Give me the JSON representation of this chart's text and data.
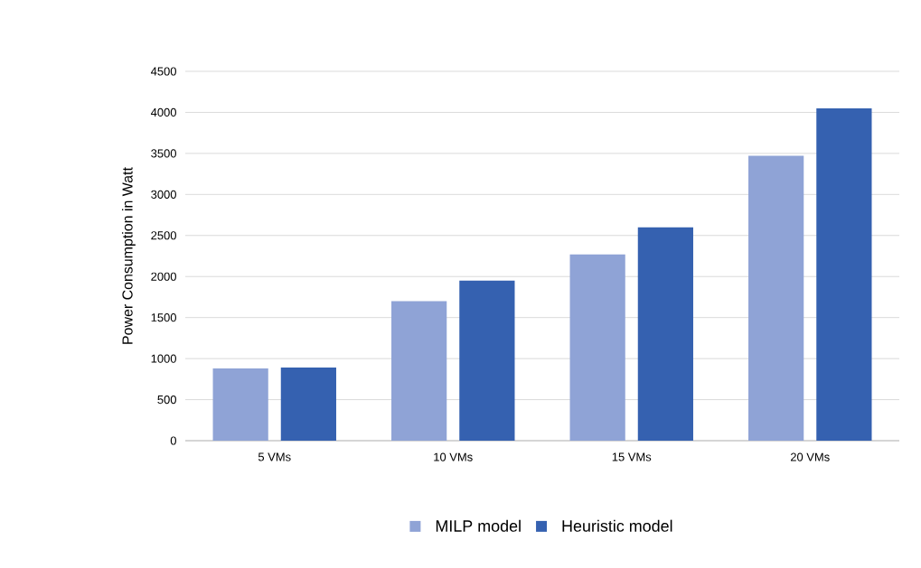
{
  "chart_data": {
    "type": "bar",
    "ylabel": "Power Consumption in Watt",
    "categories": [
      "5 VMs",
      "10 VMs",
      "15 VMs",
      "20 VMs"
    ],
    "series": [
      {
        "name": "MILP model",
        "color": "#8fa3d6",
        "values": [
          880,
          1700,
          2270,
          3470
        ]
      },
      {
        "name": "Heuristic model",
        "color": "#3561b0",
        "values": [
          890,
          1950,
          2600,
          4050
        ]
      }
    ],
    "ylim": [
      0,
      4500
    ],
    "yticks": [
      0,
      500,
      1000,
      1500,
      2000,
      2500,
      3000,
      3500,
      4000,
      4500
    ],
    "grid": "y",
    "legend": "bottom"
  }
}
